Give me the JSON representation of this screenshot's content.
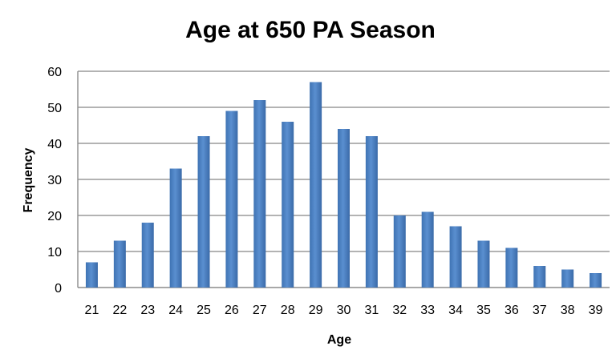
{
  "chart_data": {
    "type": "bar",
    "title": "Age at 650 PA Season",
    "xlabel": "Age",
    "ylabel": "Frequency",
    "categories": [
      "21",
      "22",
      "23",
      "24",
      "25",
      "26",
      "27",
      "28",
      "29",
      "30",
      "31",
      "32",
      "33",
      "34",
      "35",
      "36",
      "37",
      "38",
      "39"
    ],
    "values": [
      7,
      13,
      18,
      33,
      42,
      49,
      52,
      46,
      57,
      44,
      42,
      20,
      21,
      17,
      13,
      11,
      6,
      5,
      4
    ],
    "ylim": [
      0,
      60
    ],
    "yticks": [
      0,
      10,
      20,
      30,
      40,
      50,
      60
    ],
    "grid": true,
    "bar_color": "#4a7ebb",
    "legend": "none"
  }
}
